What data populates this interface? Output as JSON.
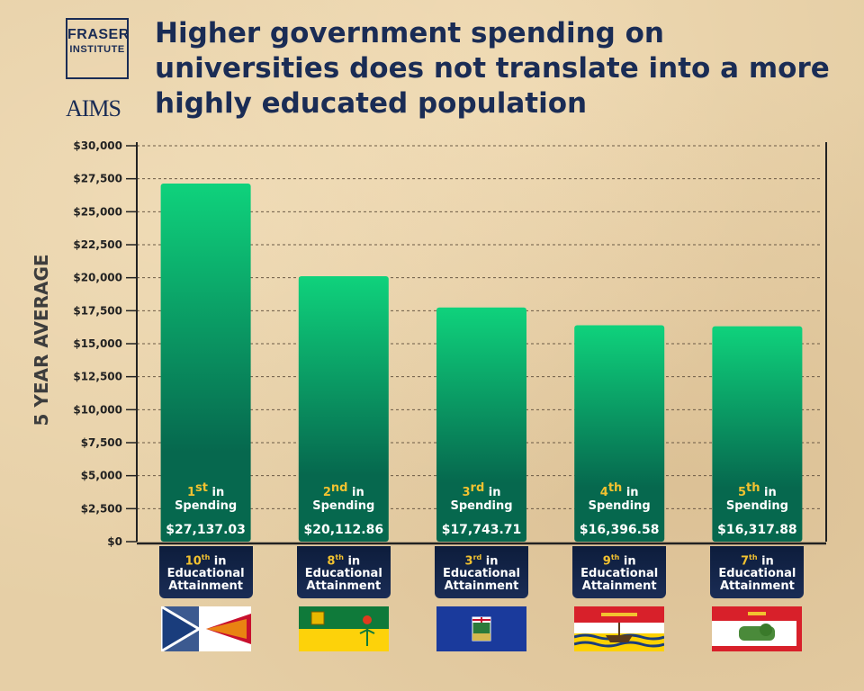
{
  "logos": {
    "fraser_line1": "FRASER",
    "fraser_line2": "INSTITUTE",
    "aims": "AIMS"
  },
  "title": "Higher government spending on universities does not translate into a more highly educated population",
  "colors": {
    "bar_top": "#0fd27c",
    "bar_bottom": "#06684e",
    "navy": "#1a2c55",
    "gold": "#f2c230"
  },
  "chart_data": {
    "type": "bar",
    "ylabel": "5 YEAR AVERAGE",
    "ylim": [
      0,
      30000
    ],
    "yticks": [
      "$0",
      "$2,500",
      "$5,000",
      "$7,500",
      "$10,000",
      "$12,500",
      "$15,000",
      "$17,500",
      "$20,000",
      "$22,500",
      "$25,000",
      "$27,500",
      "$30,000"
    ],
    "grid": true,
    "values": [
      27137.03,
      20112.86,
      17743.71,
      16396.58,
      16317.88
    ],
    "value_labels": [
      "$27,137.03",
      "$20,112.86",
      "$17,743.71",
      "$16,396.58",
      "$16,317.88"
    ],
    "spending_rank": [
      {
        "num": "1",
        "suffix": "st",
        "in": "in",
        "label": "Spending"
      },
      {
        "num": "2",
        "suffix": "nd",
        "in": "in",
        "label": "Spending"
      },
      {
        "num": "3",
        "suffix": "rd",
        "in": "in",
        "label": "Spending"
      },
      {
        "num": "4",
        "suffix": "th",
        "in": "in",
        "label": "Spending"
      },
      {
        "num": "5",
        "suffix": "th",
        "in": "in",
        "label": "Spending"
      }
    ],
    "attainment_rank": [
      {
        "num": "10",
        "suffix": "th",
        "in": "in",
        "line1": "Educational",
        "line2": "Attainment"
      },
      {
        "num": "8",
        "suffix": "th",
        "in": "in",
        "line1": "Educational",
        "line2": "Attainment"
      },
      {
        "num": "3",
        "suffix": "rd",
        "in": "in",
        "line1": "Educational",
        "line2": "Attainment"
      },
      {
        "num": "9",
        "suffix": "th",
        "in": "in",
        "line1": "Educational",
        "line2": "Attainment"
      },
      {
        "num": "7",
        "suffix": "th",
        "in": "in",
        "line1": "Educational",
        "line2": "Attainment"
      }
    ],
    "flags": [
      "newfoundland-flag",
      "saskatchewan-flag",
      "alberta-flag",
      "new-brunswick-flag",
      "pei-flag"
    ]
  }
}
